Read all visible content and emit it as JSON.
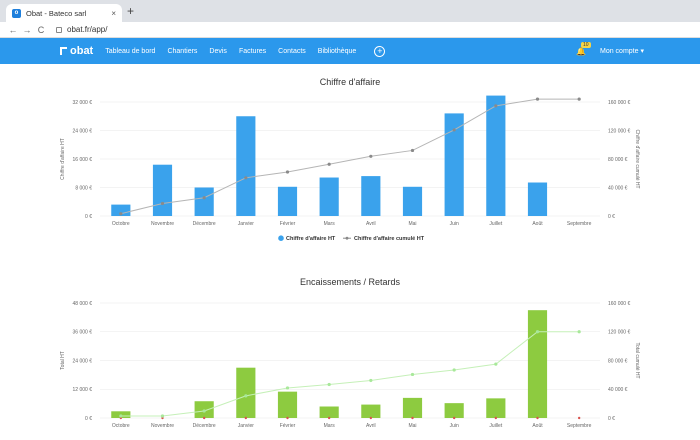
{
  "browser": {
    "tab_title": "Obat - Bateco sarl",
    "url": "obat.fr/app/",
    "tab_close": "×",
    "new_tab": "+",
    "back": "←",
    "forward": "→",
    "reload": "C"
  },
  "nav": {
    "logo": "obat",
    "items": [
      "Tableau de bord",
      "Chantiers",
      "Devis",
      "Factures",
      "Contacts",
      "Bibliothèque"
    ],
    "plus": "+",
    "badge": "10",
    "account": "Mon compte",
    "account_caret": "▾",
    "bell_icon": "bell-icon"
  },
  "colors": {
    "brand": "#2b98ec",
    "bar1": "#3aa2ec",
    "bar2": "#8dcb40",
    "line1": "#b5b5b5",
    "line2": "#c5f0b8"
  },
  "charts": [
    {
      "title": "Chiffre d'affaire",
      "type": "bar+line",
      "categories": [
        "Octobre",
        "Novembre",
        "Décembre",
        "Janvier",
        "Février",
        "Mars",
        "Avril",
        "Mai",
        "Juin",
        "Juillet",
        "Août",
        "Septembre"
      ],
      "left_axis_title": "Chiffre d'affaire HT",
      "right_axis_title": "Chiffre d'affaire cumulé HT",
      "left_ticks": [
        "0 €",
        "8 000 €",
        "16 000 €",
        "24 000 €",
        "32 000 €"
      ],
      "right_ticks": [
        "0 €",
        "40 000 €",
        "80 000 €",
        "120 000 €",
        "160 000 €"
      ],
      "ylim_left": [
        0,
        32000
      ],
      "ylim_right": [
        0,
        160000
      ],
      "bars": [
        3200,
        14400,
        8000,
        28000,
        8200,
        10800,
        11200,
        8200,
        28800,
        33800,
        9400,
        0
      ],
      "line": [
        3200,
        17600,
        25600,
        53600,
        61800,
        72600,
        83800,
        92000,
        120800,
        154600,
        164000,
        164000
      ],
      "legend": [
        "Chiffre d'affaire HT",
        "Chiffre d'affaire cumulé HT"
      ]
    },
    {
      "title": "Encaissements / Retards",
      "type": "bar+line",
      "categories": [
        "Octobre",
        "Novembre",
        "Décembre",
        "Janvier",
        "Février",
        "Mars",
        "Avril",
        "Mai",
        "Juin",
        "Juillet",
        "Août",
        "Septembre"
      ],
      "left_axis_title": "Total HT",
      "right_axis_title": "Total cumulé HT",
      "left_ticks": [
        "0 €",
        "12 000 €",
        "24 000 €",
        "36 000 €",
        "48 000 €"
      ],
      "right_ticks": [
        "0 €",
        "40 000 €",
        "80 000 €",
        "120 000 €",
        "160 000 €"
      ],
      "ylim_left": [
        0,
        48000
      ],
      "ylim_right": [
        0,
        160000
      ],
      "bars": [
        2800,
        0,
        7000,
        21000,
        11000,
        4800,
        5600,
        8400,
        6200,
        8200,
        45000,
        0
      ],
      "line": [
        2800,
        2800,
        9800,
        30800,
        41800,
        46600,
        52200,
        60600,
        66800,
        75000,
        120000,
        120000
      ]
    }
  ]
}
